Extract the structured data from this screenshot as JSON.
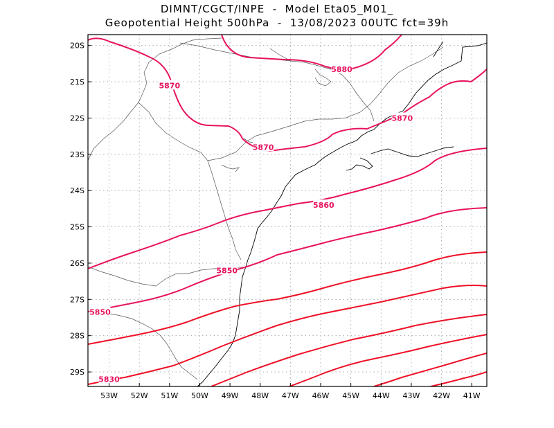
{
  "title_line1": "DIMNT/CGCT/INPE  -  Model Eta05_M01_",
  "title_line2": "Geopotential Height 500hPa  -  13/08/2023 00UTC fct=39h",
  "colors": {
    "contour_high": "#e8125f",
    "contour_low": "#ee1026",
    "coast": "#000000",
    "border": "#555555",
    "grid": "#9a9a9a"
  },
  "map": {
    "lon_range": [
      -53.7,
      -40.5
    ],
    "lat_range": [
      -29.4,
      -19.7
    ],
    "x_ticks": [
      {
        "lon": -53,
        "label": "53W"
      },
      {
        "lon": -52,
        "label": "52W"
      },
      {
        "lon": -51,
        "label": "51W"
      },
      {
        "lon": -50,
        "label": "50W"
      },
      {
        "lon": -49,
        "label": "49W"
      },
      {
        "lon": -48,
        "label": "48W"
      },
      {
        "lon": -47,
        "label": "47W"
      },
      {
        "lon": -46,
        "label": "46W"
      },
      {
        "lon": -45,
        "label": "45W"
      },
      {
        "lon": -44,
        "label": "44W"
      },
      {
        "lon": -43,
        "label": "43W"
      },
      {
        "lon": -42,
        "label": "42W"
      },
      {
        "lon": -41,
        "label": "41W"
      }
    ],
    "y_ticks": [
      {
        "lat": -20,
        "label": "20S"
      },
      {
        "lat": -21,
        "label": "21S"
      },
      {
        "lat": -22,
        "label": "22S"
      },
      {
        "lat": -23,
        "label": "23S"
      },
      {
        "lat": -24,
        "label": "24S"
      },
      {
        "lat": -25,
        "label": "25S"
      },
      {
        "lat": -26,
        "label": "26S"
      },
      {
        "lat": -27,
        "label": "27S"
      },
      {
        "lat": -28,
        "label": "28S"
      },
      {
        "lat": -29,
        "label": "29S"
      }
    ],
    "contour_labels": [
      {
        "text": "5880",
        "lon": -45.3,
        "lat": -20.65
      },
      {
        "text": "5870",
        "lon": -51.0,
        "lat": -21.1
      },
      {
        "text": "5870",
        "lon": -43.3,
        "lat": -22.0
      },
      {
        "text": "5870",
        "lon": -47.9,
        "lat": -22.8
      },
      {
        "text": "5860",
        "lon": -45.9,
        "lat": -24.4
      },
      {
        "text": "5850",
        "lon": -49.1,
        "lat": -26.2
      },
      {
        "text": "5850",
        "lon": -53.3,
        "lat": -27.35
      },
      {
        "text": "5830",
        "lon": -53.0,
        "lat": -29.2
      }
    ]
  }
}
